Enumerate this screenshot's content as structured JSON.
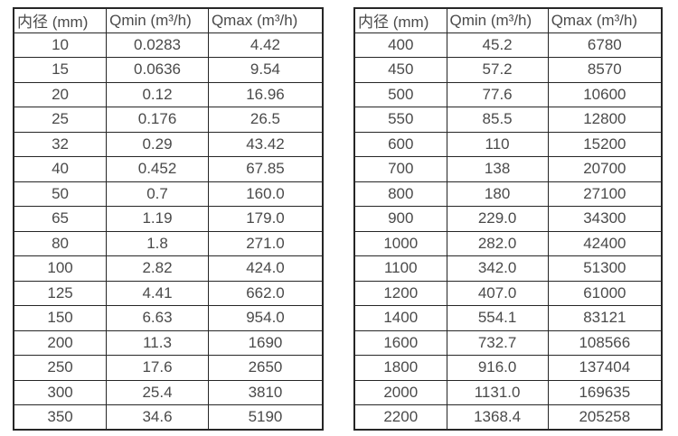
{
  "columns": {
    "diameter": "内径 (mm)",
    "qmin": "Qmin (m³/h)",
    "qmax": "Qmax (m³/h)"
  },
  "tables": [
    {
      "name": "small-diameters",
      "rows": [
        [
          "10",
          "0.0283",
          "4.42"
        ],
        [
          "15",
          "0.0636",
          "9.54"
        ],
        [
          "20",
          "0.12",
          "16.96"
        ],
        [
          "25",
          "0.176",
          "26.5"
        ],
        [
          "32",
          "0.29",
          "43.42"
        ],
        [
          "40",
          "0.452",
          "67.85"
        ],
        [
          "50",
          "0.7",
          "160.0"
        ],
        [
          "65",
          "1.19",
          "179.0"
        ],
        [
          "80",
          "1.8",
          "271.0"
        ],
        [
          "100",
          "2.82",
          "424.0"
        ],
        [
          "125",
          "4.41",
          "662.0"
        ],
        [
          "150",
          "6.63",
          "954.0"
        ],
        [
          "200",
          "11.3",
          "1690"
        ],
        [
          "250",
          "17.6",
          "2650"
        ],
        [
          "300",
          "25.4",
          "3810"
        ],
        [
          "350",
          "34.6",
          "5190"
        ]
      ]
    },
    {
      "name": "large-diameters",
      "rows": [
        [
          "400",
          "45.2",
          "6780"
        ],
        [
          "450",
          "57.2",
          "8570"
        ],
        [
          "500",
          "77.6",
          "10600"
        ],
        [
          "550",
          "85.5",
          "12800"
        ],
        [
          "600",
          "110",
          "15200"
        ],
        [
          "700",
          "138",
          "20700"
        ],
        [
          "800",
          "180",
          "27100"
        ],
        [
          "900",
          "229.0",
          "34300"
        ],
        [
          "1000",
          "282.0",
          "42400"
        ],
        [
          "1100",
          "342.0",
          "51300"
        ],
        [
          "1200",
          "407.0",
          "61000"
        ],
        [
          "1400",
          "554.1",
          "83121"
        ],
        [
          "1600",
          "732.7",
          "108566"
        ],
        [
          "1800",
          "916.0",
          "137404"
        ],
        [
          "2000",
          "1131.0",
          "169635"
        ],
        [
          "2200",
          "1368.4",
          "205258"
        ]
      ]
    }
  ]
}
